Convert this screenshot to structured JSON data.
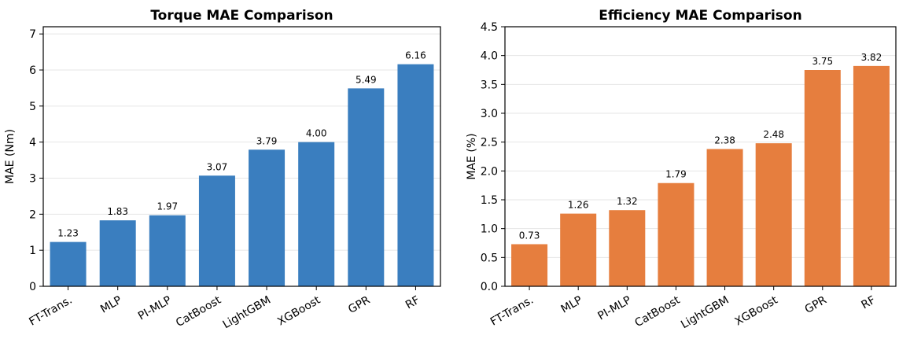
{
  "chart_data": [
    {
      "type": "bar",
      "title": "Torque MAE Comparison",
      "xlabel": "",
      "ylabel": "MAE (Nm)",
      "categories": [
        "FT-Trans.",
        "MLP",
        "PI-MLP",
        "CatBoost",
        "LightGBM",
        "XGBoost",
        "GPR",
        "RF"
      ],
      "values": [
        1.23,
        1.83,
        1.97,
        3.07,
        3.79,
        4.0,
        5.49,
        6.16
      ],
      "value_labels": [
        "1.23",
        "1.83",
        "1.97",
        "3.07",
        "3.79",
        "4.00",
        "5.49",
        "6.16"
      ],
      "ylim": [
        0,
        7.2
      ],
      "yticks": [
        0,
        1,
        2,
        3,
        4,
        5,
        6,
        7
      ],
      "ytick_labels": [
        "0",
        "1",
        "2",
        "3",
        "4",
        "5",
        "6",
        "7"
      ],
      "grid": "y",
      "color": "#3a7ebf"
    },
    {
      "type": "bar",
      "title": "Efficiency MAE Comparison",
      "xlabel": "",
      "ylabel": "MAE (%)",
      "categories": [
        "FT-Trans.",
        "MLP",
        "PI-MLP",
        "CatBoost",
        "LightGBM",
        "XGBoost",
        "GPR",
        "RF"
      ],
      "values": [
        0.73,
        1.26,
        1.32,
        1.79,
        2.38,
        2.48,
        3.75,
        3.82
      ],
      "value_labels": [
        "0.73",
        "1.26",
        "1.32",
        "1.79",
        "2.38",
        "2.48",
        "3.75",
        "3.82"
      ],
      "ylim": [
        0,
        4.5
      ],
      "yticks": [
        0,
        0.5,
        1,
        1.5,
        2,
        2.5,
        3,
        3.5,
        4,
        4.5
      ],
      "ytick_labels": [
        "0.0",
        "0.5",
        "1.0",
        "1.5",
        "2.0",
        "2.5",
        "3.0",
        "3.5",
        "4.0",
        "4.5"
      ],
      "grid": "y",
      "color": "#e67e3e"
    }
  ]
}
